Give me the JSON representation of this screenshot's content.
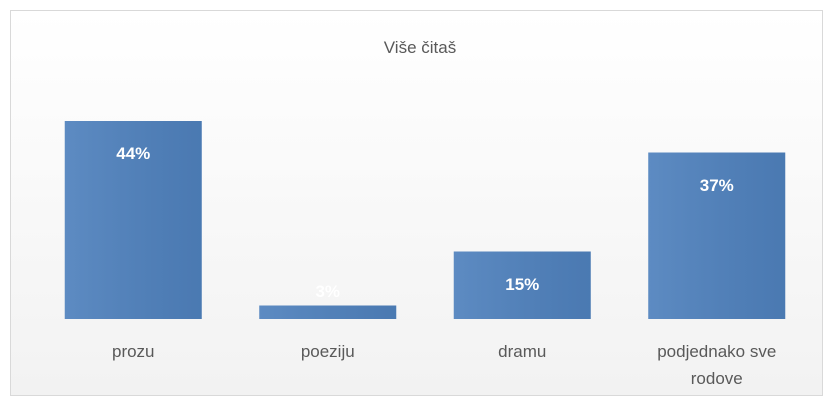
{
  "chart_data": {
    "type": "bar",
    "title": "Više čitaš",
    "categories": [
      "prozu",
      "poeziju",
      "dramu",
      "podjednako sve rodove"
    ],
    "values": [
      44,
      3,
      15,
      37
    ],
    "value_labels": [
      "44%",
      "3%",
      "15%",
      "37%"
    ],
    "color": "#4f81bd"
  }
}
